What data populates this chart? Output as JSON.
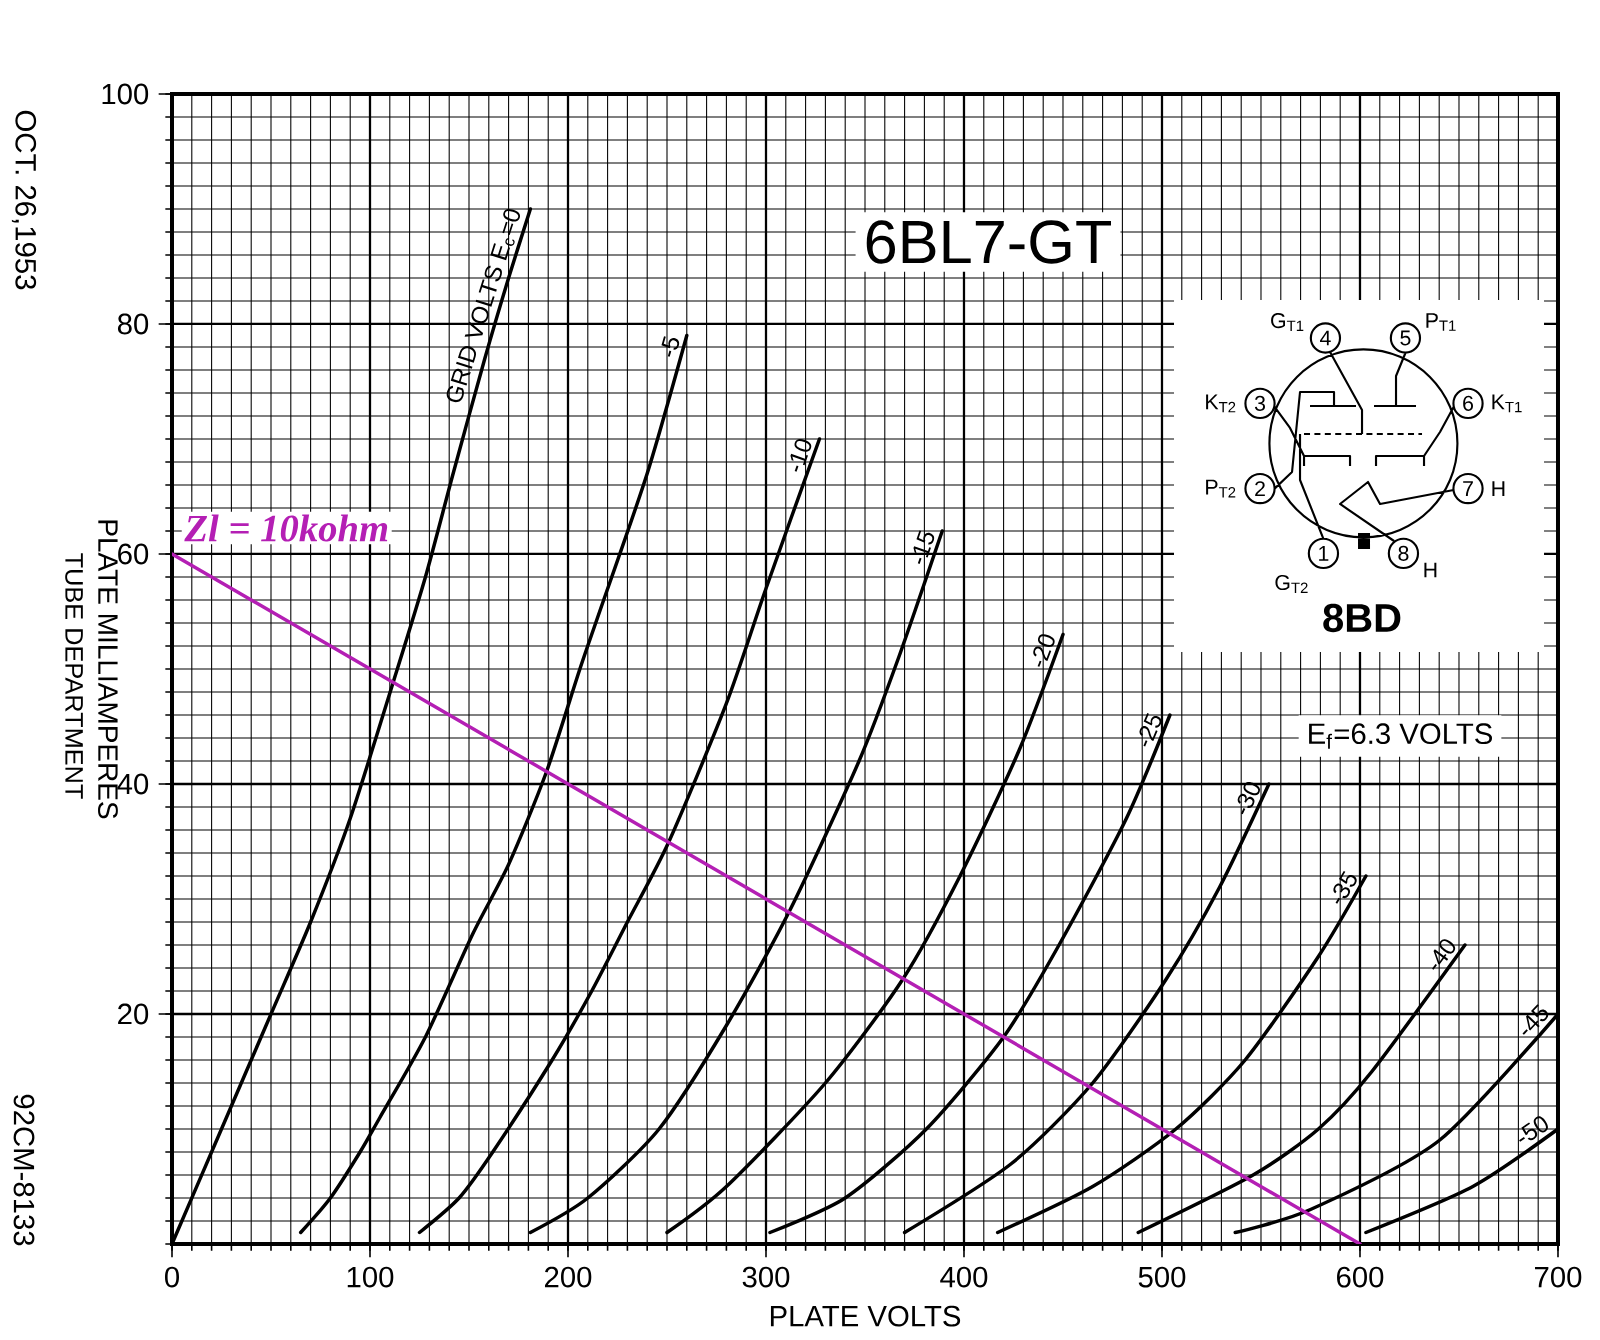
{
  "chart_data": {
    "type": "line",
    "title": "6BL7-GT",
    "xlabel": "PLATE VOLTS",
    "ylabel": "PLATE MILLIAMPERES",
    "xlim": [
      0,
      700
    ],
    "ylim": [
      0,
      100
    ],
    "xticks": [
      0,
      100,
      200,
      300,
      400,
      500,
      600,
      700
    ],
    "yticks": [
      20,
      40,
      60,
      80,
      100
    ],
    "grid": true,
    "series": [
      {
        "name": "GRID VOLTS E$_{c}$=0",
        "color": "#000000",
        "x": [
          0,
          25,
          50,
          70,
          90,
          112,
          128,
          142,
          158,
          170,
          181
        ],
        "values": [
          0,
          10,
          20,
          28,
          37,
          49,
          58,
          67,
          77,
          84,
          90
        ]
      },
      {
        "name": "-5",
        "color": "#000000",
        "x": [
          65,
          80,
          95,
          105,
          128,
          152,
          170,
          189,
          206,
          216,
          240,
          260
        ],
        "values": [
          1,
          4,
          8,
          11,
          18,
          27,
          33,
          41,
          50,
          55,
          67,
          79
        ]
      },
      {
        "name": "-10",
        "color": "#000000",
        "x": [
          125,
          145,
          162,
          192,
          212,
          230,
          251,
          280,
          300,
          327
        ],
        "values": [
          1,
          4,
          8,
          16,
          22,
          28,
          35,
          47,
          57,
          70
        ]
      },
      {
        "name": "-15",
        "color": "#000000",
        "x": [
          181,
          210,
          246,
          280,
          312,
          347,
          367,
          389
        ],
        "values": [
          1,
          4,
          10,
          19,
          29,
          42,
          51,
          62
        ]
      },
      {
        "name": "-20",
        "color": "#000000",
        "x": [
          250,
          280,
          330,
          369,
          398,
          428,
          450
        ],
        "values": [
          1,
          5,
          14,
          23,
          32,
          43,
          53
        ]
      },
      {
        "name": "-25",
        "color": "#000000",
        "x": [
          302,
          340,
          381,
          420,
          448,
          482,
          504
        ],
        "values": [
          1,
          4,
          10,
          18,
          26,
          37,
          46
        ]
      },
      {
        "name": "-30",
        "color": "#000000",
        "x": [
          370,
          424,
          465,
          502,
          529,
          554
        ],
        "values": [
          1,
          7,
          14,
          23,
          31,
          40
        ]
      },
      {
        "name": "-35",
        "color": "#000000",
        "x": [
          417,
          465,
          507,
          542,
          579,
          603
        ],
        "values": [
          1,
          5,
          10,
          16,
          25,
          32
        ]
      },
      {
        "name": "-40",
        "color": "#000000",
        "x": [
          488,
          546,
          579,
          606,
          653
        ],
        "values": [
          1,
          6,
          10,
          15,
          26
        ]
      },
      {
        "name": "-45",
        "color": "#000000",
        "x": [
          537,
          575,
          640,
          700
        ],
        "values": [
          1,
          3,
          9,
          20
        ]
      },
      {
        "name": "-50",
        "color": "#000000",
        "x": [
          603,
          657,
          700
        ],
        "values": [
          1,
          5,
          10
        ]
      },
      {
        "name": "Zl = 10kohm",
        "color": "#b41fb4",
        "x": [
          0,
          600
        ],
        "values": [
          60,
          0
        ]
      }
    ],
    "annotations": [
      "OCT. 26,1953",
      "TUBE DEPARTMENT",
      "92CM-8133",
      "E$_{f}$=6.3 VOLTS",
      "8BD",
      "1",
      "2",
      "3",
      "4",
      "5",
      "6",
      "7",
      "8",
      "G$_{T2}$",
      "P$_{T2}$",
      "K$_{T2}$",
      "G$_{T1}$",
      "P$_{T1}$",
      "K$_{T1}$",
      "H",
      "H"
    ]
  }
}
